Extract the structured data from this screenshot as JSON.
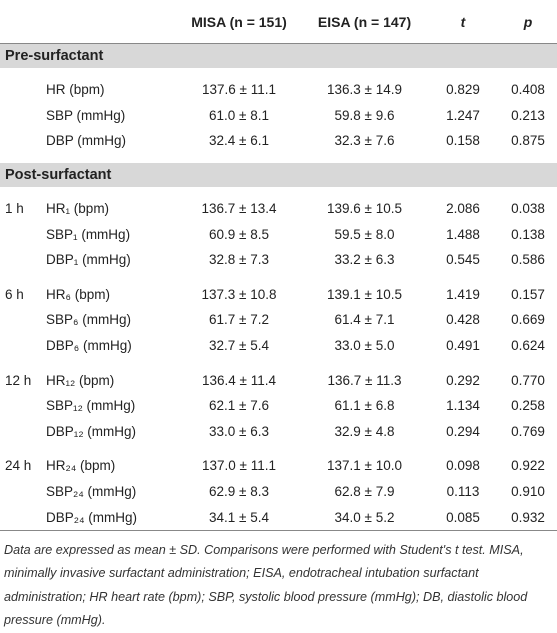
{
  "header": {
    "columns": [
      "MISA (n = 151)",
      "EISA (n = 147)",
      "t",
      "p"
    ]
  },
  "sections": [
    {
      "title": "Pre-surfactant",
      "groups": [
        {
          "rows": [
            {
              "variable": "HR (bpm)",
              "misa": "137.6 ± 11.1",
              "eisa": "136.3 ± 14.9",
              "t": "0.829",
              "p": "0.408"
            },
            {
              "variable": "SBP (mmHg)",
              "misa": "61.0 ± 8.1",
              "eisa": "59.8 ± 9.6",
              "t": "1.247",
              "p": "0.213"
            },
            {
              "variable": "DBP (mmHg)",
              "misa": "32.4 ± 6.1",
              "eisa": "32.3 ± 7.6",
              "t": "0.158",
              "p": "0.875"
            }
          ]
        }
      ]
    },
    {
      "title": "Post-surfactant",
      "groups": [
        {
          "time": "1 h",
          "rows": [
            {
              "variable": "HR₁ (bpm)",
              "misa": "136.7 ± 13.4",
              "eisa": "139.6 ± 10.5",
              "t": "2.086",
              "p": "0.038"
            },
            {
              "variable": "SBP₁ (mmHg)",
              "misa": "60.9 ± 8.5",
              "eisa": "59.5 ± 8.0",
              "t": "1.488",
              "p": "0.138"
            },
            {
              "variable": "DBP₁ (mmHg)",
              "misa": "32.8 ± 7.3",
              "eisa": "33.2 ± 6.3",
              "t": "0.545",
              "p": "0.586"
            }
          ]
        },
        {
          "time": "6 h",
          "rows": [
            {
              "variable": "HR₆ (bpm)",
              "misa": "137.3 ± 10.8",
              "eisa": "139.1 ± 10.5",
              "t": "1.419",
              "p": "0.157"
            },
            {
              "variable": "SBP₆ (mmHg)",
              "misa": "61.7 ± 7.2",
              "eisa": "61.4 ± 7.1",
              "t": "0.428",
              "p": "0.669"
            },
            {
              "variable": "DBP₆ (mmHg)",
              "misa": "32.7 ± 5.4",
              "eisa": "33.0 ± 5.0",
              "t": "0.491",
              "p": "0.624"
            }
          ]
        },
        {
          "time": "12 h",
          "rows": [
            {
              "variable": "HR₁₂ (bpm)",
              "misa": "136.4 ± 11.4",
              "eisa": "136.7 ± 11.3",
              "t": "0.292",
              "p": "0.770"
            },
            {
              "variable": "SBP₁₂ (mmHg)",
              "misa": "62.1 ± 7.6",
              "eisa": "61.1 ± 6.8",
              "t": "1.134",
              "p": "0.258"
            },
            {
              "variable": "DBP₁₂ (mmHg)",
              "misa": "33.0 ± 6.3",
              "eisa": "32.9 ± 4.8",
              "t": "0.294",
              "p": "0.769"
            }
          ]
        },
        {
          "time": "24 h",
          "rows": [
            {
              "variable": "HR₂₄ (bpm)",
              "misa": "137.0 ± 11.1",
              "eisa": "137.1 ± 10.0",
              "t": "0.098",
              "p": "0.922"
            },
            {
              "variable": "SBP₂₄ (mmHg)",
              "misa": "62.9 ± 8.3",
              "eisa": "62.8 ± 7.9",
              "t": "0.113",
              "p": "0.910"
            },
            {
              "variable": "DBP₂₄ (mmHg)",
              "misa": "34.1 ± 5.4",
              "eisa": "34.0 ± 5.2",
              "t": "0.085",
              "p": "0.932"
            }
          ]
        }
      ]
    }
  ],
  "footnote": "Data are expressed as mean ± SD. Comparisons were performed with Student's t test. MISA, minimally invasive surfactant administration; EISA, endotracheal intubation surfactant administration; HR heart rate (bpm); SBP, systolic blood pressure (mmHg); DB, diastolic blood pressure (mmHg)."
}
